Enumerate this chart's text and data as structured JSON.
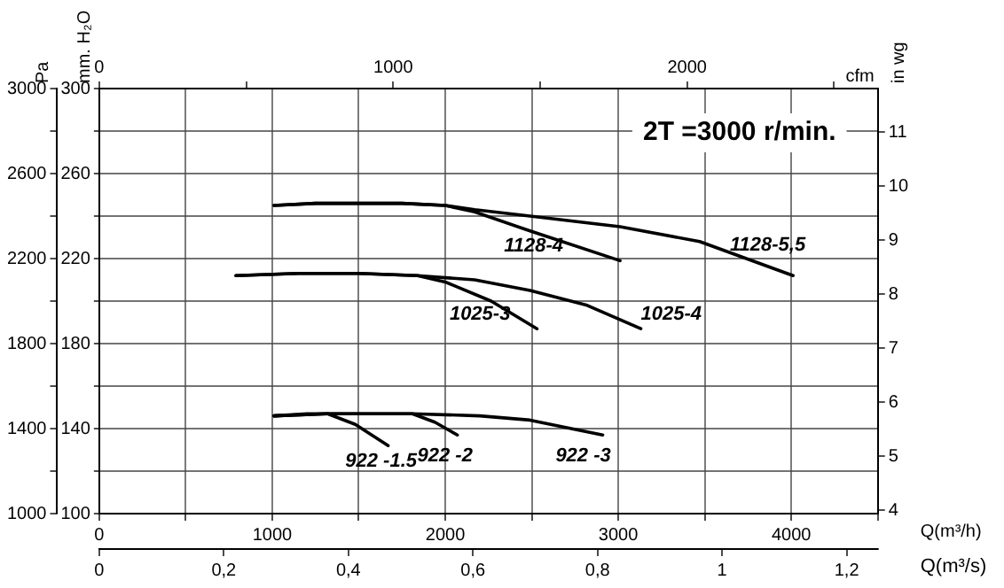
{
  "chart_data": {
    "type": "line",
    "annotations": [
      "2T =3000 r/min.",
      "Q(m³/s)",
      "0",
      "0,2",
      "0,4",
      "0,6",
      "0,8",
      "1",
      "1,2"
    ],
    "xlabel": "Q(m³/h)",
    "x2label": "cfm",
    "ylabel": "mm. H₂O",
    "y2label": "Pa",
    "y3label": "in wg",
    "xlim": [
      0,
      4500
    ],
    "xticks": [
      0,
      {
        "value": 500,
        "label": null
      },
      1000,
      {
        "value": 1500,
        "label": null
      },
      2000,
      {
        "value": 2500,
        "label": null
      },
      3000,
      {
        "value": 3500,
        "label": null
      },
      4000,
      {
        "value": 4500,
        "label": null
      }
    ],
    "x2lim": [
      0,
      2649
    ],
    "x2ticks": [
      0,
      {
        "value": 500,
        "label": null
      },
      1000,
      {
        "value": 1500,
        "label": null
      },
      2000,
      {
        "value": 2500,
        "label": null
      }
    ],
    "ylim": [
      100,
      300
    ],
    "yticks": [
      100,
      {
        "value": 120,
        "label": null
      },
      140,
      {
        "value": 160,
        "label": null
      },
      180,
      {
        "value": 200,
        "label": null
      },
      220,
      {
        "value": 240,
        "label": null
      },
      260,
      {
        "value": 280,
        "label": null
      },
      300
    ],
    "y2lim": [
      1000,
      3000
    ],
    "y2ticks": [
      1000,
      {
        "value": 1200,
        "label": null
      },
      1400,
      {
        "value": 1600,
        "label": null
      },
      1800,
      {
        "value": 2000,
        "label": null
      },
      2200,
      {
        "value": 2400,
        "label": null
      },
      2600,
      {
        "value": 2800,
        "label": null
      },
      3000
    ],
    "y3lim": [
      3.94,
      11.81
    ],
    "y3ticks": [
      4,
      5,
      6,
      7,
      8,
      9,
      10,
      11
    ],
    "grid": true,
    "legend": false,
    "marker": "none",
    "line_style": "solid",
    "series": [
      {
        "name": "1128-4",
        "color": "#000000",
        "x": [
          1010,
          1250,
          1500,
          1750,
          2000,
          2170,
          2490,
          3010
        ],
        "values": [
          245,
          246,
          246,
          246,
          245,
          242,
          233,
          219
        ]
      },
      {
        "name": "1128-5,5",
        "color": "#000000",
        "x": [
          1010,
          1250,
          1500,
          1750,
          2000,
          2170,
          2490,
          3010,
          3470,
          4010
        ],
        "values": [
          245,
          246,
          246,
          246,
          245,
          243,
          240,
          235,
          228,
          212
        ]
      },
      {
        "name": "1025-3",
        "color": "#000000",
        "x": [
          790,
          1150,
          1500,
          1840,
          2000,
          2265,
          2530
        ],
        "values": [
          212,
          213,
          213,
          212,
          209,
          200,
          187
        ]
      },
      {
        "name": "1025-4",
        "color": "#000000",
        "x": [
          790,
          1150,
          1500,
          1840,
          2000,
          2170,
          2490,
          2820,
          3130
        ],
        "values": [
          212,
          213,
          213,
          212,
          211,
          210,
          205,
          198,
          187
        ]
      },
      {
        "name": "922 -1.5",
        "color": "#000000",
        "x": [
          1010,
          1200,
          1320,
          1480,
          1670
        ],
        "values": [
          146,
          147,
          147,
          142,
          132
        ]
      },
      {
        "name": "922 -2",
        "color": "#000000",
        "x": [
          1010,
          1320,
          1600,
          1810,
          1940,
          2070
        ],
        "values": [
          146,
          147,
          147,
          147,
          143,
          137
        ]
      },
      {
        "name": "922 -3",
        "color": "#000000",
        "x": [
          1010,
          1320,
          1600,
          1810,
          2200,
          2490,
          2910
        ],
        "values": [
          146,
          147,
          147,
          147,
          146,
          144,
          137
        ]
      }
    ]
  }
}
